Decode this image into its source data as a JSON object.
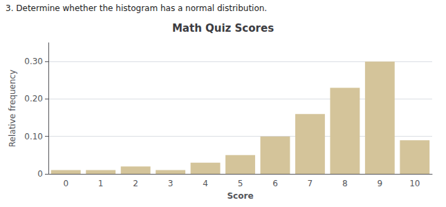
{
  "chart_data": {
    "type": "bar",
    "title": "Math Quiz Scores",
    "annotation": "3. Determine whether the histogram has a normal distribution.",
    "xlabel": "Score",
    "ylabel": "Relative frequency",
    "categories": [
      "0",
      "1",
      "2",
      "3",
      "4",
      "5",
      "6",
      "7",
      "8",
      "9",
      "10"
    ],
    "values": [
      0.01,
      0.01,
      0.02,
      0.01,
      0.03,
      0.05,
      0.1,
      0.16,
      0.23,
      0.3,
      0.09
    ],
    "color": "#d4c49a",
    "ylim": [
      0,
      0.35
    ],
    "yticks": [
      0,
      {
        "value": 0.1,
        "label": "0.10"
      },
      {
        "value": 0.2,
        "label": "0.20"
      },
      {
        "value": 0.3,
        "label": "0.30"
      }
    ],
    "grid": true
  }
}
